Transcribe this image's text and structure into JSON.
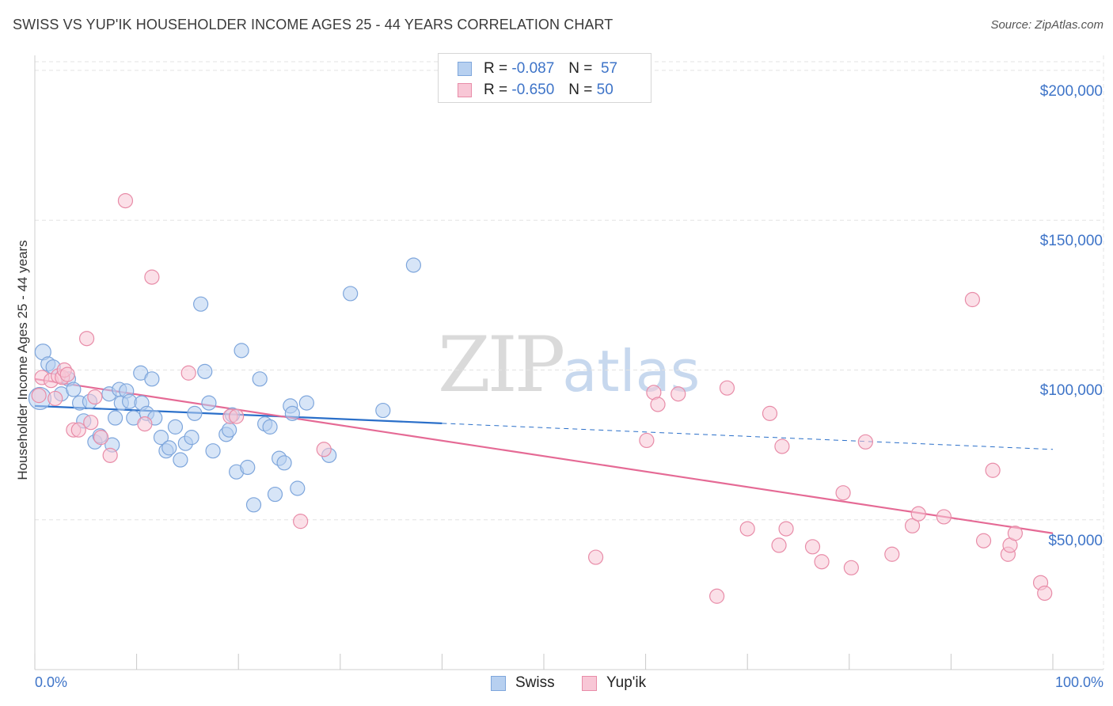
{
  "title": "SWISS VS YUP'IK HOUSEHOLDER INCOME AGES 25 - 44 YEARS CORRELATION CHART",
  "source": "Source: ZipAtlas.com",
  "watermark": {
    "zip": "ZIP",
    "atlas": "atlas"
  },
  "legend": {
    "swiss": {
      "r_label": "R =",
      "r_value": "-0.087",
      "n_label": "N =",
      "n_value": "57"
    },
    "yupik": {
      "r_label": "R =",
      "r_value": "-0.650",
      "n_label": "N =",
      "n_value": "50"
    }
  },
  "colors": {
    "swiss_fill": "#b7d0f0",
    "swiss_stroke": "#7ea6dc",
    "swiss_line": "#2a6fc9",
    "yupik_fill": "#f8c7d6",
    "yupik_stroke": "#e88ca8",
    "yupik_line": "#e56a95",
    "axis_text": "#3e74c8",
    "grid": "#e3e3e3"
  },
  "chart_data": {
    "type": "scatter",
    "title": "SWISS VS YUP'IK HOUSEHOLDER INCOME AGES 25 - 44 YEARS CORRELATION CHART",
    "xlabel": "",
    "ylabel": "Householder Income Ages 25 - 44 years",
    "xlim": [
      0,
      100
    ],
    "ylim": [
      0,
      205000
    ],
    "x_tick_labels": [
      "0.0%",
      "100.0%"
    ],
    "y_ticks": [
      50000,
      100000,
      150000,
      200000
    ],
    "y_tick_labels": [
      "$50,000",
      "$100,000",
      "$150,000",
      "$200,000"
    ],
    "grid": true,
    "legend_position": "top-center",
    "series": [
      {
        "name": "Swiss",
        "r": -0.087,
        "n": 57,
        "points": [
          [
            0.5,
            90500,
            14
          ],
          [
            0.8,
            106000,
            10
          ],
          [
            1.3,
            102000,
            9
          ],
          [
            1.8,
            101000,
            9
          ],
          [
            2.6,
            92000,
            9
          ],
          [
            3.3,
            97000,
            9
          ],
          [
            3.8,
            93500,
            9
          ],
          [
            4.4,
            89000,
            9
          ],
          [
            4.8,
            83000,
            9
          ],
          [
            5.4,
            89500,
            9
          ],
          [
            5.9,
            76000,
            9
          ],
          [
            6.4,
            78000,
            9
          ],
          [
            7.3,
            92000,
            9
          ],
          [
            7.6,
            75000,
            9
          ],
          [
            7.9,
            84000,
            9
          ],
          [
            8.3,
            93500,
            9
          ],
          [
            8.5,
            89000,
            9
          ],
          [
            9.0,
            93000,
            9
          ],
          [
            9.3,
            89500,
            9
          ],
          [
            9.7,
            84000,
            9
          ],
          [
            10.5,
            89000,
            9
          ],
          [
            10.4,
            99000,
            9
          ],
          [
            11.0,
            85500,
            9
          ],
          [
            11.5,
            97000,
            9
          ],
          [
            11.8,
            84000,
            9
          ],
          [
            12.4,
            77500,
            9
          ],
          [
            12.9,
            73000,
            9
          ],
          [
            13.2,
            74000,
            9
          ],
          [
            13.8,
            81000,
            9
          ],
          [
            14.3,
            70000,
            9
          ],
          [
            14.8,
            75500,
            9
          ],
          [
            15.4,
            77500,
            9
          ],
          [
            15.7,
            85500,
            9
          ],
          [
            16.3,
            122000,
            9
          ],
          [
            16.7,
            99500,
            9
          ],
          [
            17.1,
            89000,
            9
          ],
          [
            17.5,
            73000,
            9
          ],
          [
            18.8,
            78500,
            9
          ],
          [
            19.1,
            80000,
            9
          ],
          [
            19.4,
            85000,
            9
          ],
          [
            19.8,
            66000,
            9
          ],
          [
            20.3,
            106500,
            9
          ],
          [
            20.9,
            67500,
            9
          ],
          [
            21.5,
            55000,
            9
          ],
          [
            22.1,
            97000,
            9
          ],
          [
            22.6,
            82000,
            9
          ],
          [
            23.1,
            81000,
            9
          ],
          [
            23.6,
            58500,
            9
          ],
          [
            24.0,
            70500,
            9
          ],
          [
            24.5,
            69000,
            9
          ],
          [
            25.1,
            88000,
            9
          ],
          [
            25.3,
            85500,
            9
          ],
          [
            25.8,
            60500,
            9
          ],
          [
            26.7,
            89000,
            9
          ],
          [
            28.9,
            71500,
            9
          ],
          [
            31.0,
            125500,
            9
          ],
          [
            34.2,
            86500,
            9
          ],
          [
            37.2,
            135000,
            9
          ]
        ],
        "trend": {
          "x0": 0,
          "y0": 88000,
          "x1": 100,
          "y1": 73500,
          "solid_until": 40
        }
      },
      {
        "name": "Yup'ik",
        "r": -0.65,
        "n": 50,
        "points": [
          [
            0.4,
            91500,
            9
          ],
          [
            0.7,
            97500,
            9
          ],
          [
            1.6,
            96500,
            9
          ],
          [
            2.0,
            90500,
            9
          ],
          [
            2.3,
            98000,
            9
          ],
          [
            2.7,
            97500,
            9
          ],
          [
            2.9,
            100000,
            9
          ],
          [
            3.2,
            98500,
            9
          ],
          [
            3.8,
            80000,
            9
          ],
          [
            4.3,
            80000,
            9
          ],
          [
            5.1,
            110500,
            9
          ],
          [
            5.5,
            82500,
            9
          ],
          [
            5.9,
            91000,
            9
          ],
          [
            6.5,
            77500,
            9
          ],
          [
            7.4,
            71500,
            9
          ],
          [
            8.9,
            156500,
            9
          ],
          [
            10.8,
            82000,
            9
          ],
          [
            11.5,
            131000,
            9
          ],
          [
            15.1,
            99000,
            9
          ],
          [
            19.2,
            84500,
            9
          ],
          [
            19.8,
            84500,
            9
          ],
          [
            26.1,
            49500,
            9
          ],
          [
            28.4,
            73500,
            9
          ],
          [
            55.1,
            37500,
            9
          ],
          [
            60.1,
            76500,
            9
          ],
          [
            60.8,
            92500,
            9
          ],
          [
            61.2,
            88500,
            9
          ],
          [
            63.2,
            92000,
            9
          ],
          [
            67.0,
            24500,
            9
          ],
          [
            68.0,
            94000,
            9
          ],
          [
            70.0,
            47000,
            9
          ],
          [
            72.2,
            85500,
            9
          ],
          [
            73.1,
            41500,
            9
          ],
          [
            73.4,
            74500,
            9
          ],
          [
            73.8,
            47000,
            9
          ],
          [
            76.4,
            41000,
            9
          ],
          [
            77.3,
            36000,
            9
          ],
          [
            79.4,
            59000,
            9
          ],
          [
            80.2,
            34000,
            9
          ],
          [
            81.6,
            76000,
            9
          ],
          [
            84.2,
            38500,
            9
          ],
          [
            86.2,
            48000,
            9
          ],
          [
            86.8,
            52000,
            9
          ],
          [
            89.3,
            51000,
            9
          ],
          [
            92.1,
            123500,
            9
          ],
          [
            93.2,
            43000,
            9
          ],
          [
            94.1,
            66500,
            9
          ],
          [
            95.6,
            38500,
            9
          ],
          [
            95.8,
            41500,
            9
          ],
          [
            96.3,
            45500,
            9
          ],
          [
            98.8,
            29000,
            9
          ],
          [
            99.2,
            25500,
            9
          ]
        ],
        "trend": {
          "x0": 0,
          "y0": 97000,
          "x1": 100,
          "y1": 45500,
          "solid_until": 100
        }
      }
    ]
  }
}
